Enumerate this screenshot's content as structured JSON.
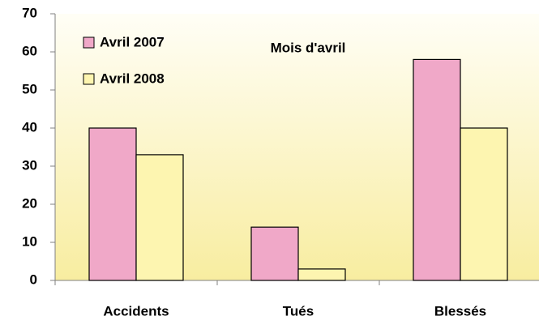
{
  "chart_data": {
    "type": "bar",
    "title": "Mois d'avril",
    "categories": [
      "Accidents",
      "Tués",
      "Blessés"
    ],
    "series": [
      {
        "name": "Avril 2007",
        "color": "#f0a8c8",
        "values": [
          40,
          14,
          58
        ]
      },
      {
        "name": "Avril 2008",
        "color": "#fdf5b0",
        "values": [
          33,
          3,
          40
        ]
      }
    ],
    "ylim": [
      0,
      70
    ],
    "yticks": [
      0,
      10,
      20,
      30,
      40,
      50,
      60,
      70
    ],
    "grid": false,
    "legend": "upper left"
  }
}
